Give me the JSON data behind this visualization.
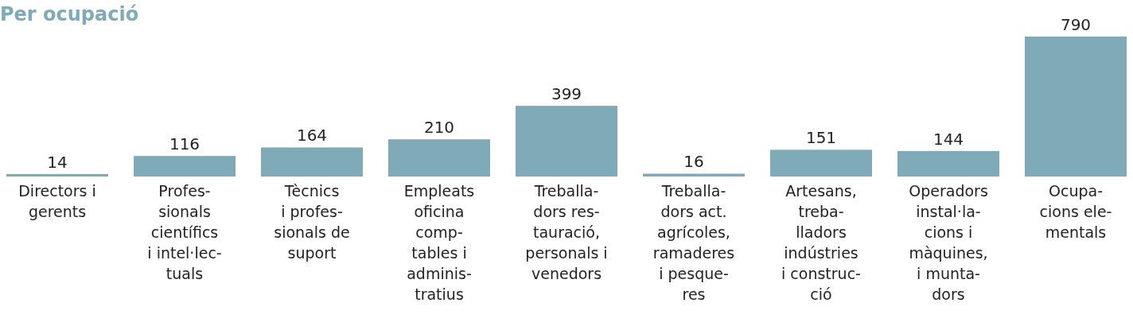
{
  "chart_data": {
    "type": "bar",
    "title": "Per ocupació",
    "categories": [
      "Directors i\ngerents",
      "Profes-\nsionals\ncientífics\ni intel·lec-\ntuals",
      "Tècnics\ni profes-\nsionals de\nsuport",
      "Empleats\noficina\ncomp-\ntables i\nadminis-\ntratius",
      "Treballa-\ndors res-\ntauració,\npersonals i\nvenedors",
      "Treballa-\ndors act.\nagrícoles,\nramaderes\ni pesque-\nres",
      "Artesans,\ntreba-\nlladors\nindústries\ni construc-\nció",
      "Operadors\ninstal·la-\ncions i\nmàquines,\ni munta-\ndors",
      "Ocupa-\ncions ele-\nmentals"
    ],
    "values": [
      14,
      116,
      164,
      210,
      399,
      16,
      151,
      144,
      790
    ],
    "color": "#7faab8",
    "data_labels": true,
    "ylim": [
      0,
      790
    ],
    "tick_labels": "x"
  }
}
